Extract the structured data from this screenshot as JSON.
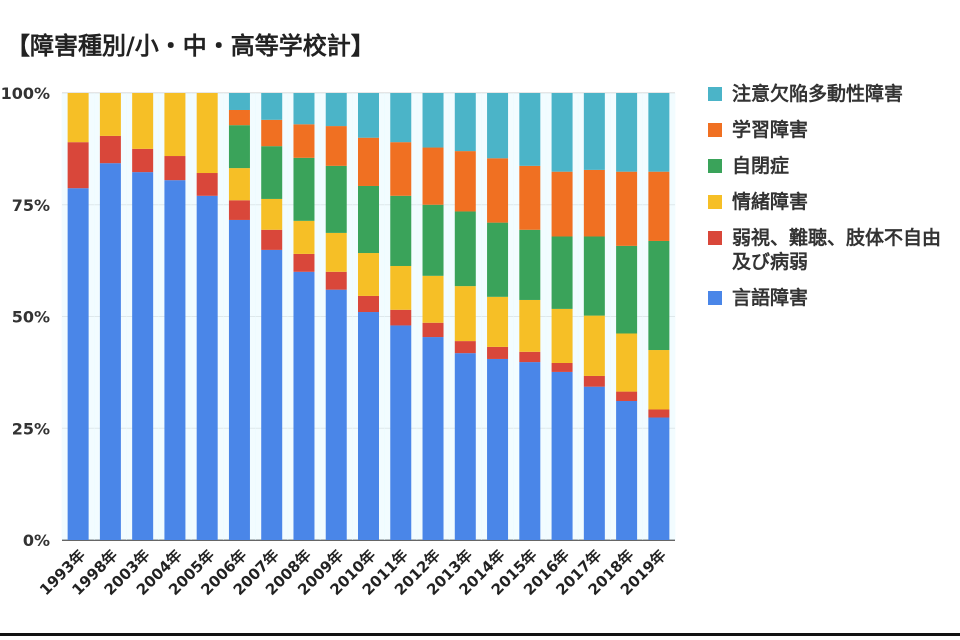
{
  "chart_data": {
    "type": "bar",
    "stacked": "percent",
    "title": "【障害種別/小・中・高等学校計】",
    "xlabel": "",
    "ylabel": "",
    "ylim": [
      0,
      100
    ],
    "yticks": [
      "0%",
      "25%",
      "50%",
      "75%",
      "100%"
    ],
    "grid": true,
    "legend_position": "right",
    "categories": [
      "1993年",
      "1998年",
      "2003年",
      "2004年",
      "2005年",
      "2006年",
      "2007年",
      "2008年",
      "2009年",
      "2010年",
      "2011年",
      "2012年",
      "2013年",
      "2014年",
      "2015年",
      "2016年",
      "2017年",
      "2018年",
      "2019年"
    ],
    "series": [
      {
        "name": "言語障害",
        "color": "#4a86e8",
        "values": [
          78.7,
          84.3,
          82.3,
          80.5,
          77.0,
          71.6,
          64.9,
          60.0,
          56.0,
          51.0,
          48.0,
          45.4,
          41.8,
          40.5,
          39.8,
          37.6,
          34.3,
          31.1,
          27.4
        ]
      },
      {
        "name": "弱視、難聴、肢体不自由及び病弱",
        "color": "#d9473a",
        "values": [
          10.3,
          6.1,
          5.2,
          5.4,
          5.1,
          4.4,
          4.5,
          4.0,
          4.0,
          3.6,
          3.5,
          3.2,
          2.7,
          2.7,
          2.3,
          2.0,
          2.4,
          2.1,
          1.8
        ]
      },
      {
        "name": "情緒障害",
        "color": "#f6bf26",
        "values": [
          11.0,
          9.6,
          12.5,
          14.1,
          17.9,
          7.2,
          6.9,
          7.4,
          8.7,
          9.6,
          9.8,
          10.5,
          12.3,
          11.2,
          11.6,
          12.1,
          13.5,
          13.0,
          13.3
        ]
      },
      {
        "name": "自閉症",
        "color": "#3aa35a",
        "values": [
          0,
          0,
          0,
          0,
          0,
          9.6,
          11.8,
          14.1,
          15.0,
          15.0,
          15.7,
          15.9,
          16.7,
          16.6,
          15.7,
          16.2,
          17.7,
          19.6,
          24.4
        ]
      },
      {
        "name": "学習障害",
        "color": "#f07022",
        "values": [
          0,
          0,
          0,
          0,
          0,
          3.4,
          5.9,
          7.5,
          8.9,
          10.8,
          12.0,
          12.8,
          13.5,
          14.4,
          14.3,
          14.5,
          14.9,
          16.6,
          15.5
        ]
      },
      {
        "name": "注意欠陥多動性障害",
        "color": "#4bb4c8",
        "values": [
          0,
          0,
          0,
          0,
          0,
          3.8,
          6.0,
          7.0,
          7.4,
          10.0,
          11.0,
          12.2,
          13.0,
          14.6,
          16.3,
          17.6,
          17.2,
          17.6,
          17.6
        ]
      }
    ],
    "legend_order": [
      "注意欠陥多動性障害",
      "学習障害",
      "自閉症",
      "情緒障害",
      "弱視、難聴、肢体不自由及び病弱",
      "言語障害"
    ]
  }
}
